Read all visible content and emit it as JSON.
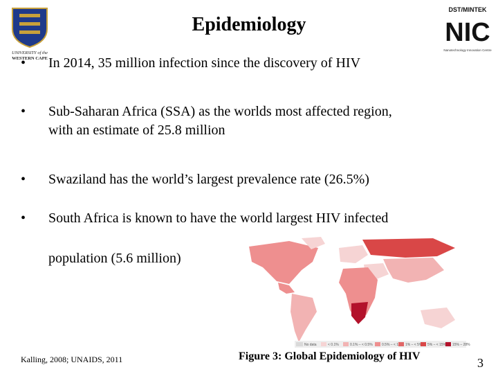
{
  "slide": {
    "title": "Epidemiology",
    "bullet_symbol": "•",
    "bullets": [
      {
        "lines": [
          "In 2014, 35 million infection since the discovery of HIV"
        ]
      },
      {
        "lines": [
          "Sub-Saharan Africa (SSA) as the worlds most affected region,",
          "with an estimate of 25.8 million"
        ]
      },
      {
        "lines": [
          "Swaziland has the world’s largest prevalence rate (26.5%)"
        ]
      },
      {
        "lines": [
          "South Africa is known to have the world largest HIV infected",
          "population (5.6 million)"
        ]
      }
    ],
    "figure_caption": "Figure 3: Global Epidemiology of HIV",
    "reference": "Kalling, 2008; UNAIDS, 2011",
    "page_number": "3"
  },
  "logos": {
    "left": {
      "line1": "UNIVERSITY of the",
      "line2": "WESTERN CAPE"
    },
    "right": {
      "line1": "DST/MINTEK",
      "line2": "NIC",
      "line3": "Nanotechnology Innovation Centre"
    }
  },
  "map_legend": [
    "No data",
    "< 0.1%",
    "0.1% – < 0.5%",
    "0.5% – < 1%",
    "1% – < 5%",
    "5% – < 15%",
    "15% – 28%"
  ],
  "colors": {
    "light": "#f6d4d4",
    "mid": "#ee8f8f",
    "high": "#d94747",
    "top": "#b3122b",
    "nodata": "#d9d9d9"
  }
}
